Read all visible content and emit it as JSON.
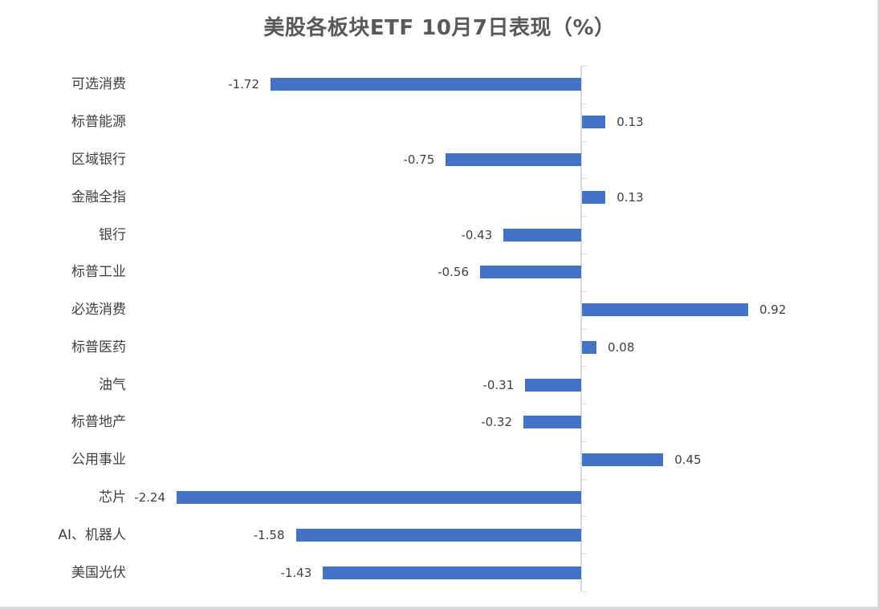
{
  "title": "美股各板块ETF  10月7日表现（%）",
  "chart_data": {
    "type": "bar",
    "orientation": "horizontal",
    "title": "美股各板块ETF  10月7日表现（%）",
    "xlabel": "",
    "ylabel": "",
    "categories": [
      "可选消费",
      "标普能源",
      "区域银行",
      "金融全指",
      "银行",
      "标普工业",
      "必选消费",
      "标普医药",
      "油气",
      "标普地产",
      "公用事业",
      "芯片",
      "AI、机器人",
      "美国光伏"
    ],
    "values": [
      -1.72,
      0.13,
      -0.75,
      0.13,
      -0.43,
      -0.56,
      0.92,
      0.08,
      -0.31,
      -0.32,
      0.45,
      -2.24,
      -1.58,
      -1.43
    ],
    "value_labels": [
      "-1.72",
      "0.13",
      "-0.75",
      "0.13",
      "-0.43",
      "-0.56",
      "0.92",
      "0.08",
      "-0.31",
      "-0.32",
      "0.45",
      "-2.24",
      "-1.58",
      "-1.43"
    ],
    "bar_color": "#4472c4",
    "grid": false,
    "legend": "none",
    "xlim": [
      -2.24,
      0.92
    ]
  }
}
